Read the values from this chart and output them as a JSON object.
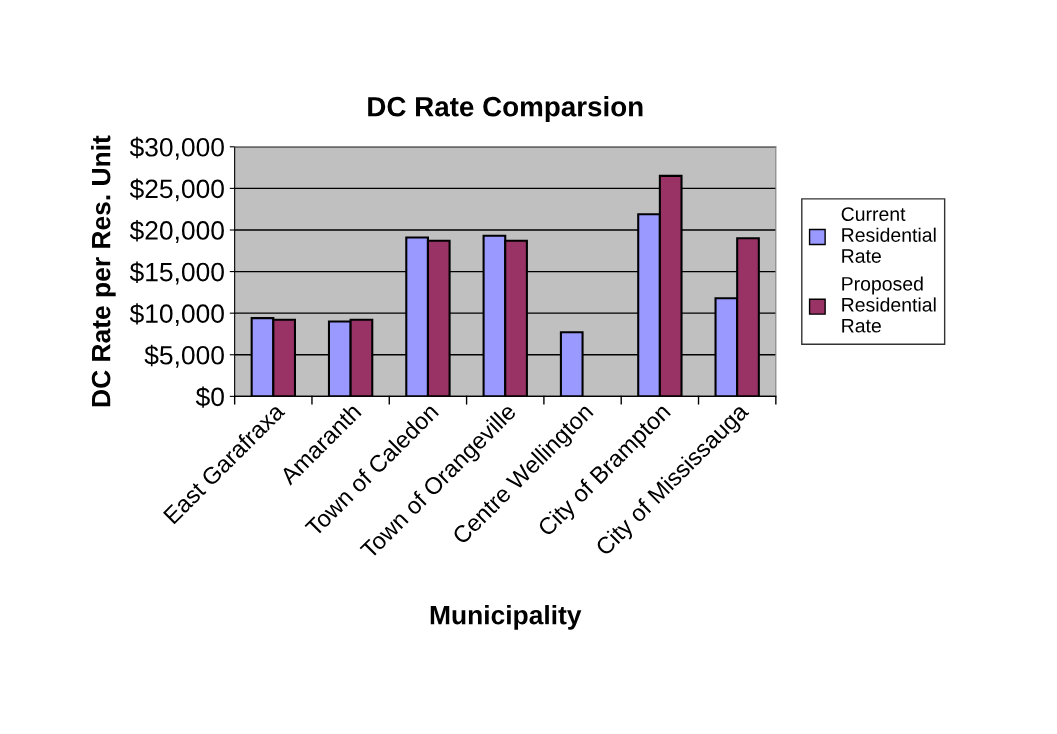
{
  "chart_data": {
    "type": "bar",
    "title": "DC Rate Comparsion",
    "xlabel": "Municipality",
    "ylabel": "DC Rate per Res. Unit",
    "categories": [
      "East Garafraxa",
      "Amaranth",
      "Town of Caledon",
      "Town of Orangeville",
      "Centre Wellington",
      "City of Brampton",
      "City of Mississauga"
    ],
    "series": [
      {
        "name": "Current Residential Rate",
        "color": "#9999ff",
        "values": [
          9400,
          9000,
          19100,
          19300,
          7700,
          21900,
          11800
        ]
      },
      {
        "name": "Proposed Residential Rate",
        "color": "#993366",
        "values": [
          9200,
          9200,
          18700,
          18700,
          null,
          26500,
          19000
        ]
      }
    ],
    "ylim": [
      0,
      30000
    ],
    "yticks": [
      {
        "value": 0,
        "label": "$0"
      },
      {
        "value": 5000,
        "label": "$5,000"
      },
      {
        "value": 10000,
        "label": "$10,000"
      },
      {
        "value": 15000,
        "label": "$15,000"
      },
      {
        "value": 20000,
        "label": "$20,000"
      },
      {
        "value": 25000,
        "label": "$25,000"
      },
      {
        "value": 30000,
        "label": "$30,000"
      }
    ],
    "grid": "y",
    "legend": "right"
  }
}
